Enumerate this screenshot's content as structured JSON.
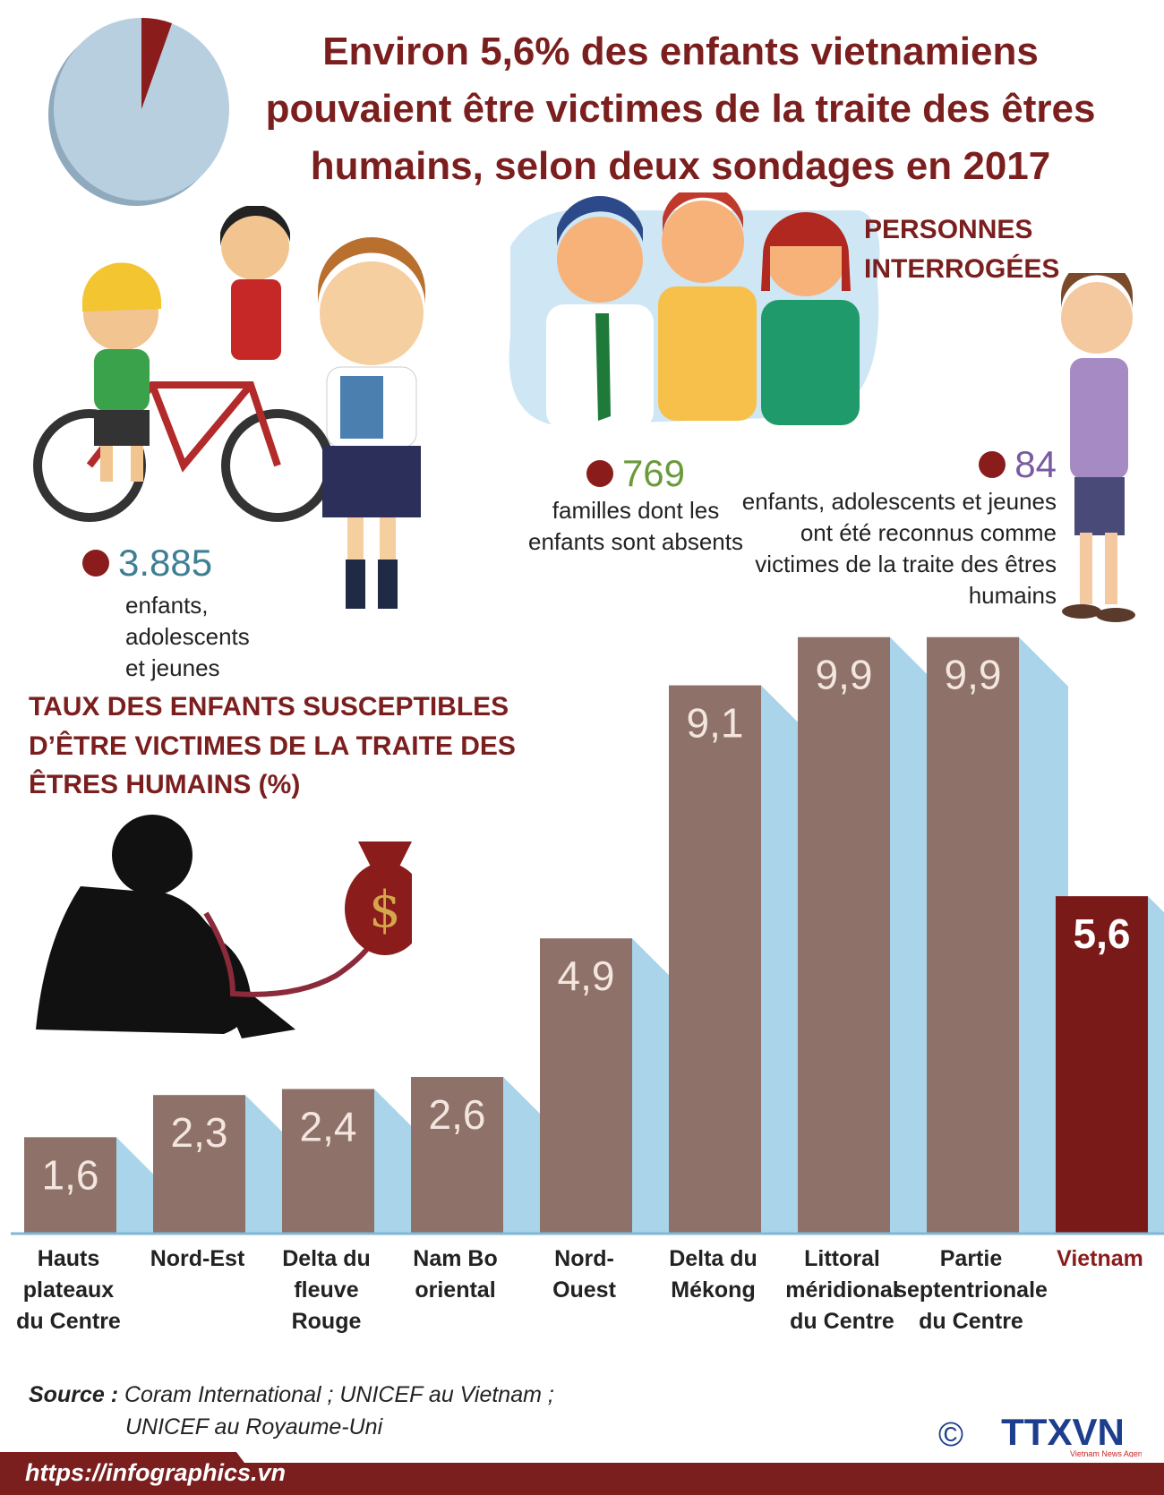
{
  "header": {
    "title_lines": [
      "Environ 5,6% des enfants vietnamiens",
      "pouvaient être victimes de la traite des êtres",
      "humains, selon deux sondages en 2017"
    ]
  },
  "pie_icon": {
    "highlight_percent": 5.6,
    "colors": {
      "base": "#b8cfe0",
      "highlight": "#8a1c1c"
    }
  },
  "respondents": {
    "label_lines": [
      "PERSONNES",
      "INTERROGÉES"
    ],
    "children": {
      "value": "3.885",
      "desc_lines": [
        "enfants,",
        "adolescents",
        "et jeunes"
      ]
    },
    "families": {
      "value": "769",
      "desc_lines": [
        "familles dont les",
        "enfants sont absents"
      ]
    },
    "victims": {
      "value": "84",
      "desc_lines": [
        "enfants, adolescents et jeunes",
        "ont été reconnus comme",
        "victimes de la traite des êtres",
        "humains"
      ]
    }
  },
  "chart_data": {
    "type": "bar",
    "title_lines": [
      "TAUX DES ENFANTS SUSCEPTIBLES",
      "D’ÊTRE VICTIMES DE LA TRAITE DES",
      "ÊTRES HUMAINS (%)"
    ],
    "categories": [
      [
        "Hauts",
        "plateaux",
        "du Centre"
      ],
      [
        "Nord-Est"
      ],
      [
        "Delta du",
        "fleuve",
        "Rouge"
      ],
      [
        "Nam Bo",
        "oriental"
      ],
      [
        "Nord-",
        "Ouest"
      ],
      [
        "Delta du",
        "Mékong"
      ],
      [
        "Littoral",
        "méridional",
        "du Centre"
      ],
      [
        "Partie",
        "septentrionale",
        "du Centre"
      ],
      [
        "Vietnam"
      ]
    ],
    "values": [
      1.6,
      2.3,
      2.4,
      2.6,
      4.9,
      9.1,
      9.9,
      9.9,
      5.6
    ],
    "value_labels": [
      "1,6",
      "2,3",
      "2,4",
      "2,6",
      "4,9",
      "9,1",
      "9,9",
      "9,9",
      "5,6"
    ],
    "highlight_index": 8,
    "ylim": [
      0,
      10
    ],
    "grid": false,
    "colors": {
      "bar": "#8e7168",
      "highlight": "#7a1a18",
      "shadow": "#a9d4ea",
      "label_highlight": "#8a1c1c",
      "label": "#222222"
    }
  },
  "source": {
    "label": "Source :",
    "line1": "Coram International ; UNICEF au Vietnam ;",
    "line2": "UNICEF au Royaume-Uni"
  },
  "branding": {
    "copyright": "©",
    "logo_text": "TTXVN",
    "logo_sub": "Vietnam News Agency",
    "url": "https://infographics.vn"
  }
}
